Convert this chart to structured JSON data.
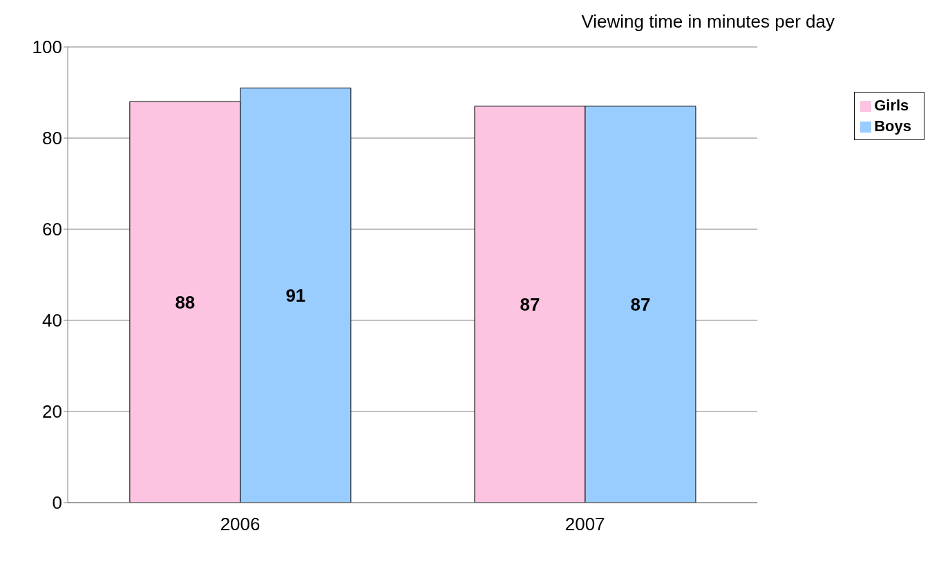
{
  "chart_data": {
    "type": "bar",
    "title": "Viewing time in minutes per day",
    "categories": [
      "2006",
      "2007"
    ],
    "series": [
      {
        "name": "Girls",
        "color": "#fcc4e0",
        "values": [
          88,
          87
        ]
      },
      {
        "name": "Boys",
        "color": "#99ccff",
        "values": [
          91,
          87
        ]
      }
    ],
    "ylim": [
      0,
      100
    ],
    "yticks": [
      0,
      20,
      40,
      60,
      80,
      100
    ],
    "grid": "y",
    "legend": "right",
    "data_labels": true
  }
}
